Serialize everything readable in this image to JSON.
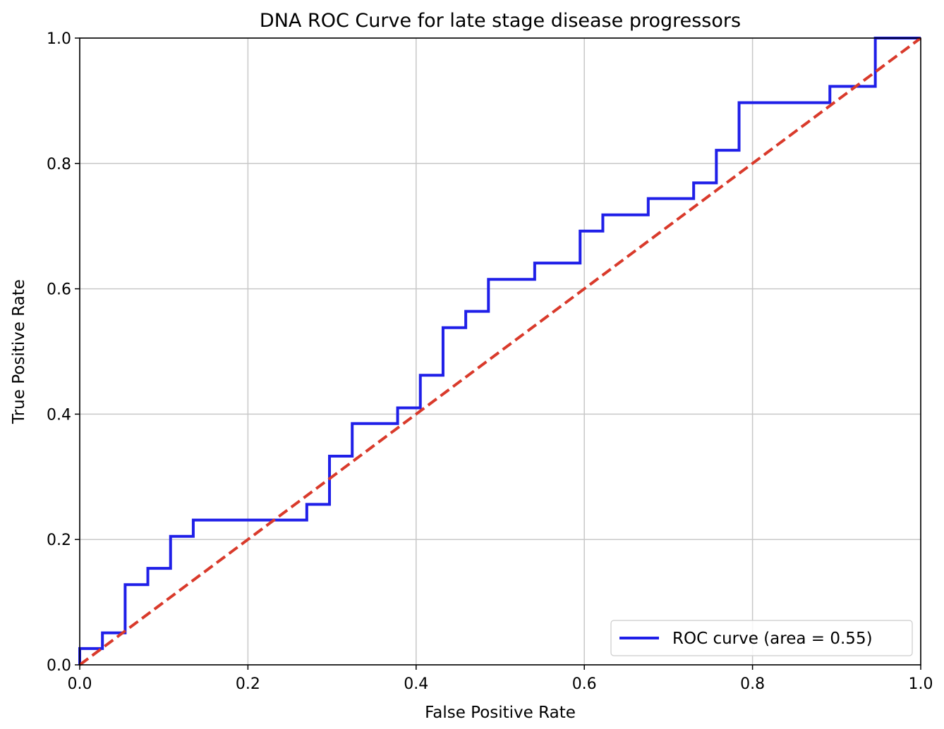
{
  "chart_data": {
    "type": "line",
    "title": "DNA ROC Curve for late stage disease progressors",
    "xlabel": "False Positive Rate",
    "ylabel": "True Positive Rate",
    "xlim": [
      0.0,
      1.0
    ],
    "ylim": [
      0.0,
      1.0
    ],
    "xticks": [
      "0.0",
      "0.2",
      "0.4",
      "0.6",
      "0.8",
      "1.0"
    ],
    "yticks": [
      "0.0",
      "0.2",
      "0.4",
      "0.6",
      "0.8",
      "1.0"
    ],
    "grid": true,
    "legend_position": "lower-right",
    "series": [
      {
        "name": "ROC curve (area = 0.55)",
        "color": "#1f1fe8",
        "style": "solid",
        "x": [
          0.0,
          0.0,
          0.027,
          0.027,
          0.054,
          0.054,
          0.081,
          0.081,
          0.108,
          0.108,
          0.135,
          0.135,
          0.27,
          0.27,
          0.297,
          0.297,
          0.324,
          0.324,
          0.378,
          0.378,
          0.405,
          0.405,
          0.432,
          0.432,
          0.459,
          0.459,
          0.486,
          0.486,
          0.541,
          0.541,
          0.595,
          0.595,
          0.622,
          0.622,
          0.676,
          0.676,
          0.73,
          0.73,
          0.757,
          0.757,
          0.784,
          0.784,
          0.892,
          0.892,
          0.946,
          0.946,
          1.0
        ],
        "y": [
          0.0,
          0.026,
          0.026,
          0.051,
          0.051,
          0.128,
          0.128,
          0.154,
          0.154,
          0.205,
          0.205,
          0.231,
          0.231,
          0.256,
          0.256,
          0.333,
          0.333,
          0.385,
          0.385,
          0.41,
          0.41,
          0.462,
          0.462,
          0.538,
          0.538,
          0.564,
          0.564,
          0.615,
          0.615,
          0.641,
          0.641,
          0.692,
          0.692,
          0.718,
          0.718,
          0.744,
          0.744,
          0.769,
          0.769,
          0.821,
          0.821,
          0.897,
          0.897,
          0.923,
          0.923,
          1.0,
          1.0
        ]
      },
      {
        "name": "",
        "color": "#d93a2b",
        "style": "dashed",
        "x": [
          0.0,
          1.0
        ],
        "y": [
          0.0,
          1.0
        ]
      }
    ]
  }
}
